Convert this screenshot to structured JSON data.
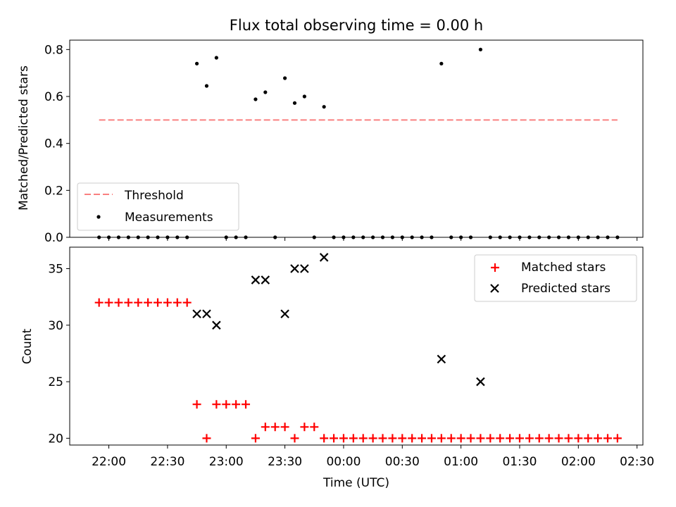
{
  "chart_data": [
    {
      "type": "scatter",
      "title": "Flux total observing time = 0.00 h",
      "ylabel": "Matched/Predicted stars",
      "xlabel": "",
      "ylim": [
        0,
        0.84
      ],
      "yticks": [
        "0.0",
        "0.2",
        "0.4",
        "0.6",
        "0.8"
      ],
      "ytick_values": [
        0,
        0.2,
        0.4,
        0.6,
        0.8
      ],
      "legend_position": "lower-left",
      "threshold": {
        "name": "Threshold",
        "value": 0.5,
        "x_start": "21:55",
        "x_end": "02:20",
        "color": "#f98080",
        "style": "dashed"
      },
      "series": [
        {
          "name": "Measurements",
          "color": "#000000",
          "marker": "dot",
          "x": [
            "21:55",
            "22:00",
            "22:05",
            "22:10",
            "22:15",
            "22:20",
            "22:25",
            "22:30",
            "22:35",
            "22:40",
            "22:45",
            "22:50",
            "22:55",
            "23:00",
            "23:05",
            "23:10",
            "23:15",
            "23:20",
            "23:25",
            "23:30",
            "23:35",
            "23:40",
            "23:45",
            "23:50",
            "23:55",
            "00:00",
            "00:05",
            "00:10",
            "00:15",
            "00:20",
            "00:25",
            "00:30",
            "00:35",
            "00:40",
            "00:45",
            "00:50",
            "00:55",
            "01:00",
            "01:05",
            "01:10",
            "01:15",
            "01:20",
            "01:25",
            "01:30",
            "01:35",
            "01:40",
            "01:45",
            "01:50",
            "01:55",
            "02:00",
            "02:05",
            "02:10",
            "02:15",
            "02:20"
          ],
          "y": [
            0,
            0,
            0,
            0,
            0,
            0,
            0,
            0,
            0,
            0,
            0.74,
            0.645,
            0.765,
            0,
            0,
            0,
            0.588,
            0.618,
            0,
            0.678,
            0.572,
            0.6,
            0,
            0.556,
            0,
            0,
            0,
            0,
            0,
            0,
            0,
            0,
            0,
            0,
            0,
            0.74,
            0,
            0,
            0,
            0.8,
            0,
            0,
            0,
            0,
            0,
            0,
            0,
            0,
            0,
            0,
            0,
            0,
            0,
            0
          ]
        }
      ]
    },
    {
      "type": "scatter",
      "title": "",
      "ylabel": "Count",
      "xlabel": "Time (UTC)",
      "ylim": [
        19.4,
        36.9
      ],
      "yticks": [
        "20",
        "25",
        "30",
        "35"
      ],
      "ytick_values": [
        20,
        25,
        30,
        35
      ],
      "xlim": [
        "21:40",
        "02:33"
      ],
      "xticks": [
        "22:00",
        "22:30",
        "23:00",
        "23:30",
        "00:00",
        "00:30",
        "01:00",
        "01:30",
        "02:00",
        "02:30"
      ],
      "legend_position": "top-right",
      "series": [
        {
          "name": "Matched stars",
          "color": "#ff0000",
          "marker": "plus",
          "x": [
            "21:55",
            "22:00",
            "22:05",
            "22:10",
            "22:15",
            "22:20",
            "22:25",
            "22:30",
            "22:35",
            "22:40",
            "22:45",
            "22:50",
            "22:55",
            "23:00",
            "23:05",
            "23:10",
            "23:15",
            "23:20",
            "23:25",
            "23:30",
            "23:35",
            "23:40",
            "23:45",
            "23:50",
            "23:55",
            "00:00",
            "00:05",
            "00:10",
            "00:15",
            "00:20",
            "00:25",
            "00:30",
            "00:35",
            "00:40",
            "00:45",
            "00:50",
            "00:55",
            "01:00",
            "01:05",
            "01:10",
            "01:15",
            "01:20",
            "01:25",
            "01:30",
            "01:35",
            "01:40",
            "01:45",
            "01:50",
            "01:55",
            "02:00",
            "02:05",
            "02:10",
            "02:15",
            "02:20"
          ],
          "y": [
            32,
            32,
            32,
            32,
            32,
            32,
            32,
            32,
            32,
            32,
            23,
            20,
            23,
            23,
            23,
            23,
            20,
            21,
            21,
            21,
            20,
            21,
            21,
            20,
            20,
            20,
            20,
            20,
            20,
            20,
            20,
            20,
            20,
            20,
            20,
            20,
            20,
            20,
            20,
            20,
            20,
            20,
            20,
            20,
            20,
            20,
            20,
            20,
            20,
            20,
            20,
            20,
            20,
            20
          ]
        },
        {
          "name": "Predicted stars",
          "color": "#000000",
          "marker": "x",
          "x": [
            "22:45",
            "22:50",
            "22:55",
            "23:15",
            "23:20",
            "23:30",
            "23:35",
            "23:40",
            "23:50",
            "00:50",
            "01:10"
          ],
          "y": [
            31,
            31,
            30,
            34,
            34,
            31,
            35,
            35,
            36,
            27,
            25
          ]
        }
      ]
    }
  ]
}
